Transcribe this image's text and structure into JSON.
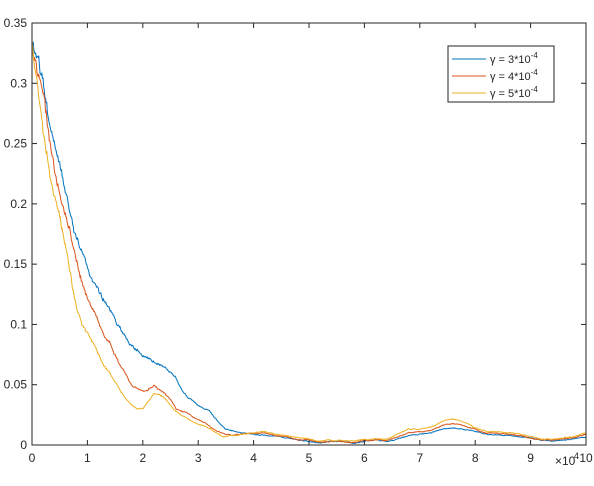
{
  "chart_data": {
    "type": "line",
    "title": "",
    "xlabel": "",
    "ylabel": "",
    "xlim": [
      0,
      100000
    ],
    "ylim": [
      0,
      0.35
    ],
    "x_tick_values": [
      0,
      10000,
      20000,
      30000,
      40000,
      50000,
      60000,
      70000,
      80000,
      90000,
      100000
    ],
    "x_tick_labels": [
      "0",
      "1",
      "2",
      "3",
      "4",
      "5",
      "6",
      "7",
      "8",
      "9",
      "10"
    ],
    "x_multiplier": {
      "base": "×10",
      "exponent": "4"
    },
    "y_tick_values": [
      0,
      0.05,
      0.1,
      0.15,
      0.2,
      0.25,
      0.3,
      0.35
    ],
    "y_tick_labels": [
      "0",
      "0.05",
      "0.1",
      "0.15",
      "0.2",
      "0.25",
      "0.3",
      "0.35"
    ],
    "grid": false,
    "box": true,
    "legend_position": "top-right",
    "series": [
      {
        "name": "γ = 3*10^-4",
        "legend_base": "γ = 3*10",
        "legend_exp": "-4",
        "color": "#0072BD",
        "points": [
          [
            0,
            0.33
          ],
          [
            1000,
            0.32
          ],
          [
            2000,
            0.3
          ],
          [
            3000,
            0.27
          ],
          [
            4000,
            0.252
          ],
          [
            5000,
            0.232
          ],
          [
            6000,
            0.213
          ],
          [
            7000,
            0.193
          ],
          [
            8000,
            0.172
          ],
          [
            9000,
            0.163
          ],
          [
            10000,
            0.148
          ],
          [
            11000,
            0.135
          ],
          [
            12000,
            0.128
          ],
          [
            13000,
            0.118
          ],
          [
            14000,
            0.112
          ],
          [
            15000,
            0.104
          ],
          [
            16000,
            0.098
          ],
          [
            17000,
            0.088
          ],
          [
            18000,
            0.082
          ],
          [
            19000,
            0.078
          ],
          [
            20000,
            0.074
          ],
          [
            21000,
            0.071
          ],
          [
            22000,
            0.069
          ],
          [
            23000,
            0.067
          ],
          [
            24000,
            0.064
          ],
          [
            25000,
            0.06
          ],
          [
            26000,
            0.055
          ],
          [
            27000,
            0.046
          ],
          [
            28000,
            0.04
          ],
          [
            29000,
            0.037
          ],
          [
            30000,
            0.033
          ],
          [
            31000,
            0.03
          ],
          [
            32000,
            0.028
          ],
          [
            33000,
            0.022
          ],
          [
            34000,
            0.017
          ],
          [
            35000,
            0.013
          ],
          [
            36000,
            0.012
          ],
          [
            37000,
            0.011
          ],
          [
            38000,
            0.01
          ],
          [
            40000,
            0.009
          ],
          [
            42000,
            0.008
          ],
          [
            44000,
            0.007
          ],
          [
            46000,
            0.006
          ],
          [
            48000,
            0.004
          ],
          [
            50000,
            0.003
          ],
          [
            52000,
            0.002
          ],
          [
            54000,
            0.003
          ],
          [
            56000,
            0.003
          ],
          [
            58000,
            0.002
          ],
          [
            60000,
            0.003
          ],
          [
            62000,
            0.004
          ],
          [
            64000,
            0.003
          ],
          [
            66000,
            0.005
          ],
          [
            68000,
            0.008
          ],
          [
            70000,
            0.009
          ],
          [
            72000,
            0.01
          ],
          [
            74000,
            0.013
          ],
          [
            76000,
            0.014
          ],
          [
            78000,
            0.013
          ],
          [
            80000,
            0.011
          ],
          [
            82000,
            0.009
          ],
          [
            84000,
            0.008
          ],
          [
            86000,
            0.008
          ],
          [
            88000,
            0.007
          ],
          [
            90000,
            0.006
          ],
          [
            92000,
            0.004
          ],
          [
            94000,
            0.003
          ],
          [
            96000,
            0.004
          ],
          [
            98000,
            0.005
          ],
          [
            100000,
            0.007
          ]
        ]
      },
      {
        "name": "γ = 4*10^-4",
        "legend_base": "γ = 4*10",
        "legend_exp": "-4",
        "color": "#D95319",
        "points": [
          [
            0,
            0.335
          ],
          [
            1000,
            0.31
          ],
          [
            2000,
            0.29
          ],
          [
            3000,
            0.255
          ],
          [
            4000,
            0.23
          ],
          [
            5000,
            0.21
          ],
          [
            6000,
            0.192
          ],
          [
            7000,
            0.175
          ],
          [
            8000,
            0.15
          ],
          [
            9000,
            0.135
          ],
          [
            10000,
            0.122
          ],
          [
            11000,
            0.113
          ],
          [
            12000,
            0.102
          ],
          [
            13000,
            0.09
          ],
          [
            14000,
            0.085
          ],
          [
            15000,
            0.075
          ],
          [
            16000,
            0.065
          ],
          [
            17000,
            0.058
          ],
          [
            18000,
            0.05
          ],
          [
            19000,
            0.046
          ],
          [
            20000,
            0.045
          ],
          [
            21000,
            0.046
          ],
          [
            22000,
            0.049
          ],
          [
            23000,
            0.046
          ],
          [
            24000,
            0.043
          ],
          [
            25000,
            0.038
          ],
          [
            26000,
            0.03
          ],
          [
            27000,
            0.028
          ],
          [
            28000,
            0.027
          ],
          [
            29000,
            0.023
          ],
          [
            30000,
            0.021
          ],
          [
            31000,
            0.019
          ],
          [
            32000,
            0.016
          ],
          [
            33000,
            0.012
          ],
          [
            34000,
            0.01
          ],
          [
            35000,
            0.009
          ],
          [
            36000,
            0.008
          ],
          [
            37000,
            0.009
          ],
          [
            38000,
            0.009
          ],
          [
            40000,
            0.01
          ],
          [
            42000,
            0.01
          ],
          [
            44000,
            0.008
          ],
          [
            46000,
            0.007
          ],
          [
            48000,
            0.004
          ],
          [
            50000,
            0.004
          ],
          [
            52000,
            0.002
          ],
          [
            54000,
            0.003
          ],
          [
            56000,
            0.003
          ],
          [
            58000,
            0.002
          ],
          [
            60000,
            0.004
          ],
          [
            62000,
            0.004
          ],
          [
            64000,
            0.004
          ],
          [
            66000,
            0.007
          ],
          [
            68000,
            0.01
          ],
          [
            70000,
            0.011
          ],
          [
            72000,
            0.012
          ],
          [
            74000,
            0.016
          ],
          [
            76000,
            0.018
          ],
          [
            78000,
            0.016
          ],
          [
            80000,
            0.013
          ],
          [
            82000,
            0.01
          ],
          [
            84000,
            0.01
          ],
          [
            86000,
            0.009
          ],
          [
            88000,
            0.008
          ],
          [
            90000,
            0.006
          ],
          [
            92000,
            0.004
          ],
          [
            94000,
            0.004
          ],
          [
            96000,
            0.005
          ],
          [
            98000,
            0.006
          ],
          [
            100000,
            0.009
          ]
        ]
      },
      {
        "name": "γ = 5*10^-4",
        "legend_base": "γ = 5*10",
        "legend_exp": "-4",
        "color": "#EDB120",
        "points": [
          [
            0,
            0.336
          ],
          [
            1000,
            0.3
          ],
          [
            2000,
            0.26
          ],
          [
            3000,
            0.232
          ],
          [
            4000,
            0.205
          ],
          [
            5000,
            0.188
          ],
          [
            6000,
            0.168
          ],
          [
            7000,
            0.14
          ],
          [
            8000,
            0.115
          ],
          [
            9000,
            0.1
          ],
          [
            10000,
            0.092
          ],
          [
            11000,
            0.084
          ],
          [
            12000,
            0.075
          ],
          [
            13000,
            0.066
          ],
          [
            14000,
            0.06
          ],
          [
            15000,
            0.052
          ],
          [
            16000,
            0.045
          ],
          [
            17000,
            0.038
          ],
          [
            18000,
            0.033
          ],
          [
            19000,
            0.03
          ],
          [
            20000,
            0.03
          ],
          [
            21000,
            0.036
          ],
          [
            22000,
            0.043
          ],
          [
            23000,
            0.042
          ],
          [
            24000,
            0.038
          ],
          [
            25000,
            0.033
          ],
          [
            26000,
            0.028
          ],
          [
            27000,
            0.025
          ],
          [
            28000,
            0.022
          ],
          [
            29000,
            0.019
          ],
          [
            30000,
            0.017
          ],
          [
            31000,
            0.016
          ],
          [
            32000,
            0.014
          ],
          [
            33000,
            0.011
          ],
          [
            34000,
            0.008
          ],
          [
            35000,
            0.007
          ],
          [
            36000,
            0.008
          ],
          [
            37000,
            0.008
          ],
          [
            38000,
            0.009
          ],
          [
            40000,
            0.01
          ],
          [
            42000,
            0.011
          ],
          [
            44000,
            0.009
          ],
          [
            46000,
            0.008
          ],
          [
            48000,
            0.006
          ],
          [
            50000,
            0.005
          ],
          [
            52000,
            0.003
          ],
          [
            54000,
            0.004
          ],
          [
            56000,
            0.004
          ],
          [
            58000,
            0.003
          ],
          [
            60000,
            0.005
          ],
          [
            62000,
            0.005
          ],
          [
            64000,
            0.005
          ],
          [
            66000,
            0.009
          ],
          [
            68000,
            0.013
          ],
          [
            70000,
            0.013
          ],
          [
            72000,
            0.015
          ],
          [
            74000,
            0.019
          ],
          [
            76000,
            0.022
          ],
          [
            78000,
            0.019
          ],
          [
            80000,
            0.014
          ],
          [
            82000,
            0.011
          ],
          [
            84000,
            0.011
          ],
          [
            86000,
            0.01
          ],
          [
            88000,
            0.009
          ],
          [
            90000,
            0.007
          ],
          [
            92000,
            0.005
          ],
          [
            94000,
            0.005
          ],
          [
            96000,
            0.006
          ],
          [
            98000,
            0.007
          ],
          [
            100000,
            0.01
          ]
        ]
      }
    ]
  }
}
